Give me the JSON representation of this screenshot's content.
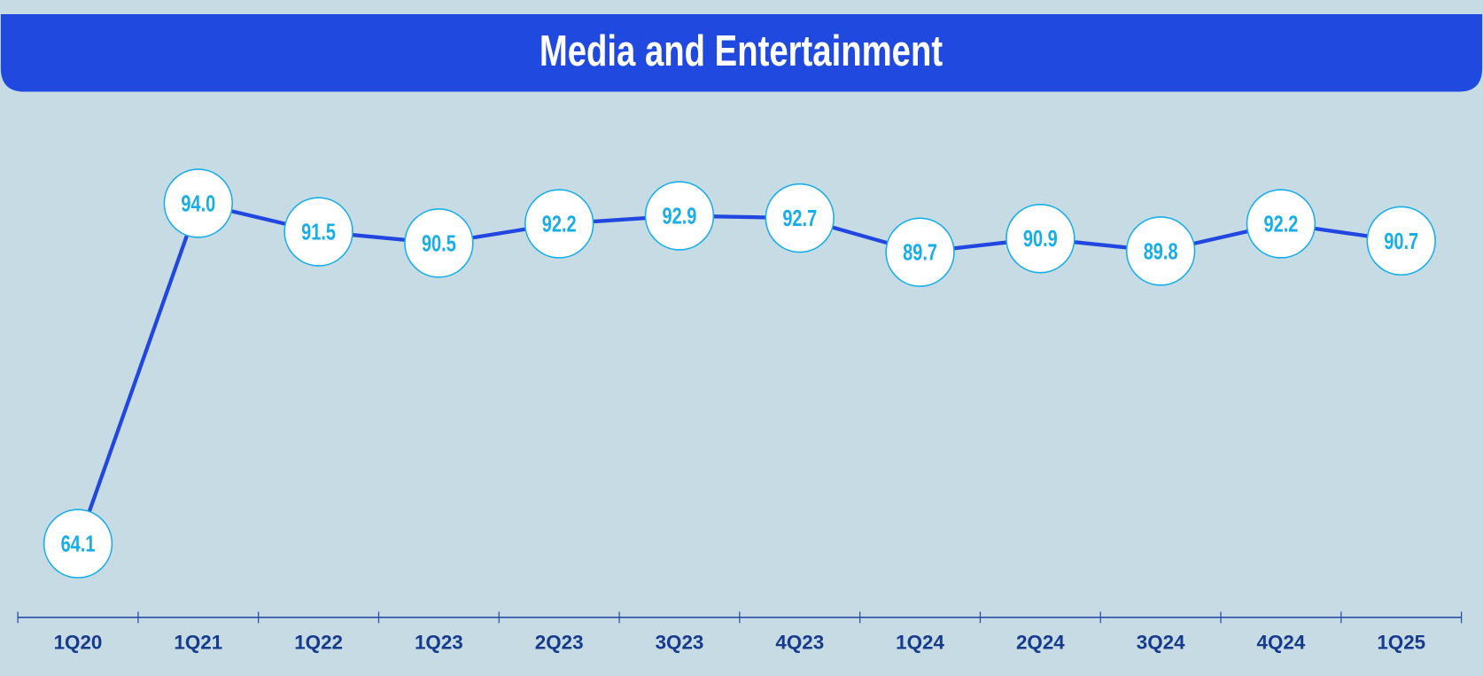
{
  "chart_data": {
    "type": "line",
    "title": "Media and Entertainment",
    "categories": [
      "1Q20",
      "1Q21",
      "1Q22",
      "1Q23",
      "2Q23",
      "3Q23",
      "4Q23",
      "1Q24",
      "2Q24",
      "3Q24",
      "4Q24",
      "1Q25"
    ],
    "values": [
      64.1,
      94.0,
      91.5,
      90.5,
      92.2,
      92.9,
      92.7,
      89.7,
      90.9,
      89.8,
      92.2,
      90.7
    ],
    "value_labels": [
      "64.1",
      "94.0",
      "91.5",
      "90.5",
      "92.2",
      "92.9",
      "92.7",
      "89.7",
      "90.9",
      "89.8",
      "92.2",
      "90.7"
    ],
    "color": "#2147e0"
  }
}
